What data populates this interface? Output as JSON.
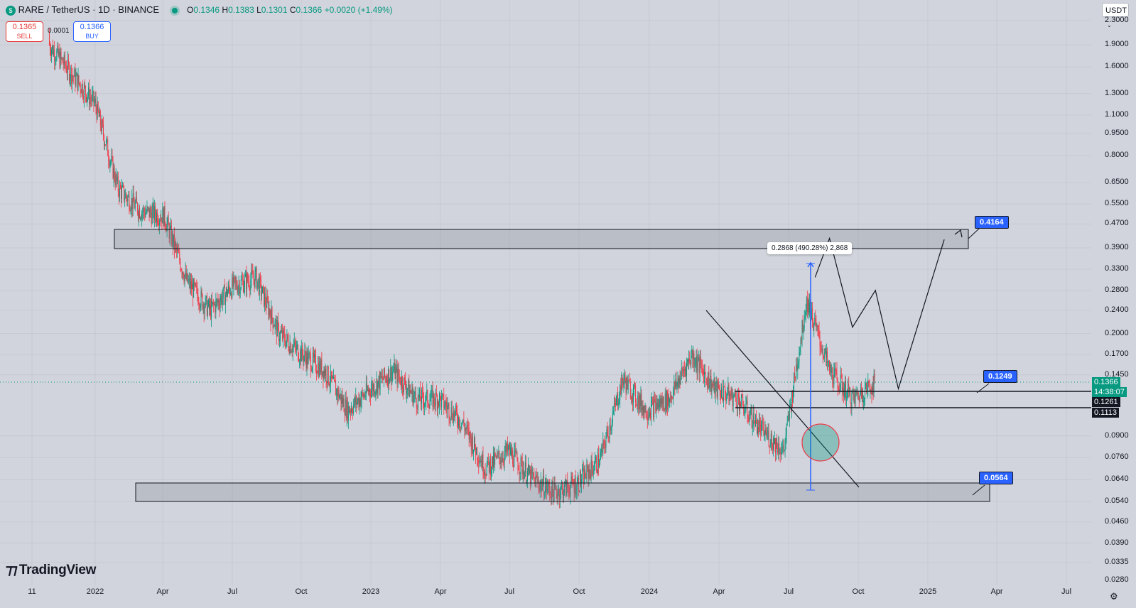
{
  "header": {
    "symbol_label": "RARE / TetherUS · 1D · BINANCE",
    "open_label": "O",
    "open_value": "0.1346",
    "high_label": "H",
    "high_value": "0.1383",
    "low_label": "L",
    "low_value": "0.1301",
    "close_label": "C",
    "close_value": "0.1366",
    "change": "+0.0020 (+1.49%)"
  },
  "trade": {
    "sell_price": "0.1365",
    "sell_label": "SELL",
    "buy_price": "0.1366",
    "buy_label": "BUY",
    "spread": "0.0001"
  },
  "currency_selector": "USDT",
  "price_axis": {
    "ticks": [
      "2.3000",
      "1.9000",
      "1.6000",
      "1.3000",
      "1.1000",
      "0.9500",
      "0.8000",
      "0.6500",
      "0.5500",
      "0.4700",
      "0.3900",
      "0.3300",
      "0.2800",
      "0.2400",
      "0.2000",
      "0.1700",
      "0.1450",
      "0.0900",
      "0.0760",
      "0.0640",
      "0.0540",
      "0.0460",
      "0.0390",
      "0.0335",
      "0.0280"
    ],
    "current_price": "0.1366",
    "countdown": "14:38:07",
    "level_1": "0.1261",
    "level_2": "0.1113"
  },
  "time_axis": {
    "labels": [
      "11",
      "2022",
      "Apr",
      "Jul",
      "Oct",
      "2023",
      "Apr",
      "Jul",
      "Oct",
      "2024",
      "Apr",
      "Jul",
      "Oct",
      "2025",
      "Apr",
      "Jul"
    ]
  },
  "annotations": {
    "target_high": "0.4164",
    "target_mid": "0.1249",
    "target_low": "0.0564",
    "measure": "0.2868 (490.28%) 2,868"
  },
  "branding": {
    "logo_text": "TradingView"
  },
  "colors": {
    "up": "#089981",
    "down": "#f23645",
    "accent": "#2962ff",
    "background": "#d1d4dc"
  },
  "chart_data": {
    "type": "candlestick",
    "title": "RARE / TetherUS · 1D · BINANCE",
    "y_scale": "log",
    "ylim": [
      0.028,
      2.3
    ],
    "xlabel": "",
    "ylabel": "",
    "x": [
      "2021-11",
      "2022-01",
      "2022-02",
      "2022-03",
      "2022-04",
      "2022-05",
      "2022-06",
      "2022-07",
      "2022-08",
      "2022-09",
      "2022-10",
      "2022-11",
      "2022-12",
      "2023-01",
      "2023-02",
      "2023-03",
      "2023-04",
      "2023-05",
      "2023-06",
      "2023-07",
      "2023-08",
      "2023-09",
      "2023-10",
      "2023-11",
      "2023-12",
      "2024-01",
      "2024-02",
      "2024-03",
      "2024-04",
      "2024-05",
      "2024-06",
      "2024-07",
      "2024-08",
      "2024-09",
      "2024-10",
      "2024-11"
    ],
    "close": [
      1.9,
      1.2,
      0.62,
      0.52,
      0.5,
      0.3,
      0.24,
      0.29,
      0.31,
      0.2,
      0.17,
      0.15,
      0.11,
      0.13,
      0.15,
      0.12,
      0.12,
      0.1,
      0.07,
      0.08,
      0.065,
      0.058,
      0.062,
      0.075,
      0.14,
      0.11,
      0.12,
      0.17,
      0.13,
      0.12,
      0.095,
      0.08,
      0.26,
      0.15,
      0.12,
      0.1366
    ],
    "series": [
      {
        "name": "Projection",
        "x": [
          "2024-08",
          "2024-09",
          "2024-10",
          "2024-11",
          "2024-12",
          "2025-02"
        ],
        "values": [
          0.31,
          0.42,
          0.21,
          0.28,
          0.13,
          0.4164
        ]
      }
    ],
    "zones": [
      {
        "from": 0.39,
        "to": 0.45,
        "x_from": "2022-01",
        "x_to": "2025-02"
      },
      {
        "from": 0.052,
        "to": 0.061,
        "x_from": "2022-02",
        "x_to": "2025-03"
      }
    ],
    "levels": [
      0.1261,
      0.1113
    ]
  }
}
